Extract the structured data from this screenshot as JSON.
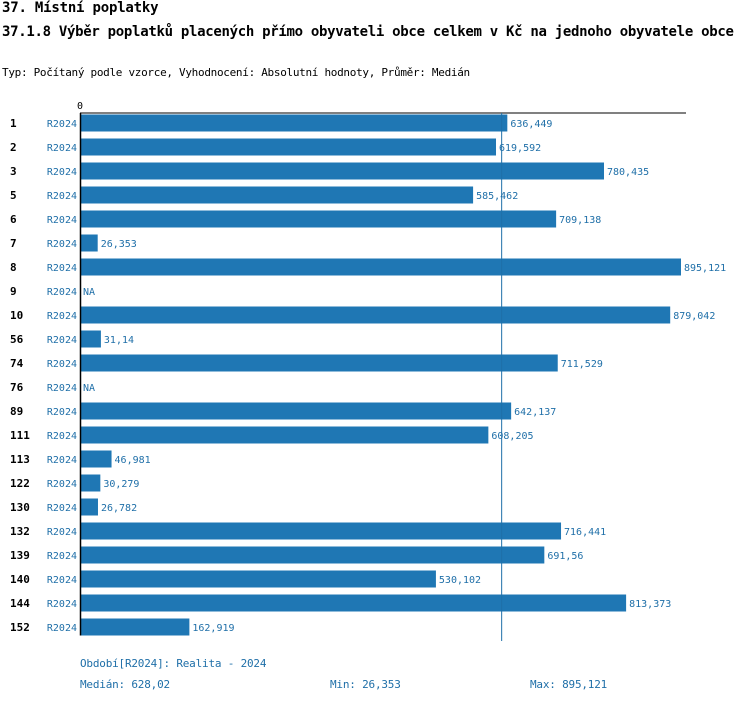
{
  "header": {
    "title": "37. Místní poplatky",
    "subtitle": "37.1.8 Výběr poplatků placených přímo obyvateli obce celkem  v Kč na jednoho obyvatele obce",
    "type_line": "Typ: Počítaný podle vzorce, Vyhodnocení: Absolutní hodnoty, Průměr: Medián"
  },
  "footer": {
    "period": "Období[R2024]: Realita - 2024",
    "median": "Medián: 628,02",
    "min": "Min: 26,353",
    "max": "Max: 895,121"
  },
  "colors": {
    "bar": "#1f77b4",
    "label": "#1f6fa8",
    "axis": "#000000"
  },
  "chart_data": {
    "type": "bar",
    "orientation": "horizontal",
    "axis_zero_label": "0",
    "median": 628.02,
    "xlim": [
      0,
      895.121
    ],
    "period_label": "R2024",
    "categories": [
      "1",
      "2",
      "3",
      "5",
      "6",
      "7",
      "8",
      "9",
      "10",
      "56",
      "74",
      "76",
      "89",
      "111",
      "113",
      "122",
      "130",
      "132",
      "139",
      "140",
      "144",
      "152"
    ],
    "values": [
      636.449,
      619.592,
      780.435,
      585.462,
      709.138,
      26.353,
      895.121,
      null,
      879.042,
      31.14,
      711.529,
      null,
      642.137,
      608.205,
      46.981,
      30.279,
      26.782,
      716.441,
      691.56,
      530.102,
      813.373,
      162.919
    ],
    "value_labels": [
      "636,449",
      "619,592",
      "780,435",
      "585,462",
      "709,138",
      "26,353",
      "895,121",
      "NA",
      "879,042",
      "31,14",
      "711,529",
      "NA",
      "642,137",
      "608,205",
      "46,981",
      "30,279",
      "26,782",
      "716,441",
      "691,56",
      "530,102",
      "813,373",
      "162,919"
    ]
  }
}
